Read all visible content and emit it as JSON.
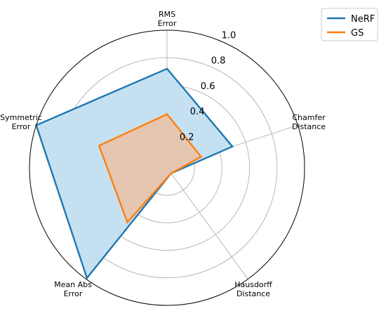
{
  "chart_data": {
    "type": "radar",
    "axes": [
      {
        "label_lines": [
          "RMS",
          "Error"
        ]
      },
      {
        "label_lines": [
          "Chamfer",
          "Distance"
        ]
      },
      {
        "label_lines": [
          "Hausdorff",
          "Distance"
        ]
      },
      {
        "label_lines": [
          "Mean Abs",
          "Error"
        ]
      },
      {
        "label_lines": [
          "Symmetric",
          "Error"
        ]
      }
    ],
    "rlim": [
      0,
      1.0
    ],
    "rticks": [
      0.2,
      0.4,
      0.6,
      0.8,
      1.0
    ],
    "rtick_labels": [
      "0.2",
      "0.4",
      "0.6",
      "0.8",
      "1.0"
    ],
    "grid": true,
    "legend_position": "top-right",
    "series": [
      {
        "name": "NeRF",
        "values": [
          0.72,
          0.5,
          0.05,
          0.99,
          1.0
        ],
        "color": "#1f77b4",
        "fill": "#c2dff0"
      },
      {
        "name": "GS",
        "values": [
          0.39,
          0.26,
          0.05,
          0.49,
          0.52
        ],
        "color": "#ff7f0e",
        "fill": "#e7c4ad"
      }
    ]
  }
}
